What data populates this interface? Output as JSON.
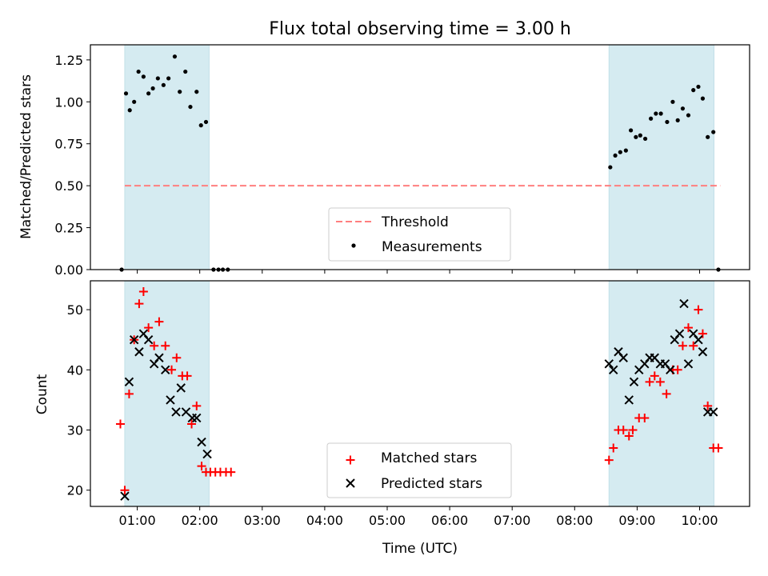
{
  "chart_data": [
    {
      "type": "scatter",
      "title": "Flux total observing time = 3.00 h",
      "xlabel": "",
      "ylabel": "Matched/Predicted stars",
      "xlim": [
        0.25,
        10.8
      ],
      "ylim": [
        0,
        1.34
      ],
      "yticks": [
        0,
        0.25,
        0.5,
        0.75,
        1.0,
        1.25
      ],
      "ytick_labels": [
        "0.00",
        "0.25",
        "0.50",
        "0.75",
        "1.00",
        "1.25"
      ],
      "xticks": [
        1,
        2,
        3,
        4,
        5,
        6,
        7,
        8,
        9,
        10
      ],
      "shaded_intervals": [
        [
          0.8,
          2.15
        ],
        [
          8.55,
          10.23
        ]
      ],
      "shade_color": "#d5ebf1",
      "threshold": {
        "name": "Threshold",
        "value": 0.5,
        "x_range": [
          0.8,
          10.33
        ],
        "color": "#ff7f7f"
      },
      "legend": {
        "position": "lower center",
        "entries": [
          "Threshold",
          "Measurements"
        ]
      },
      "series": [
        {
          "name": "Measurements",
          "color": "#000000",
          "x": [
            0.75,
            0.82,
            0.88,
            0.95,
            1.02,
            1.1,
            1.18,
            1.25,
            1.33,
            1.42,
            1.5,
            1.6,
            1.68,
            1.77,
            1.85,
            1.95,
            2.02,
            2.1,
            2.22,
            2.3,
            2.37,
            2.45,
            8.57,
            8.65,
            8.73,
            8.82,
            8.9,
            8.98,
            9.05,
            9.13,
            9.22,
            9.3,
            9.38,
            9.48,
            9.57,
            9.65,
            9.73,
            9.82,
            9.9,
            9.98,
            10.05,
            10.13,
            10.22,
            10.3
          ],
          "y": [
            0.0,
            1.05,
            0.95,
            1.0,
            1.18,
            1.15,
            1.05,
            1.08,
            1.14,
            1.1,
            1.14,
            1.27,
            1.06,
            1.18,
            0.97,
            1.06,
            0.86,
            0.88,
            0.0,
            0.0,
            0.0,
            0.0,
            0.61,
            0.68,
            0.7,
            0.71,
            0.83,
            0.79,
            0.8,
            0.78,
            0.9,
            0.93,
            0.93,
            0.88,
            1.0,
            0.89,
            0.96,
            0.92,
            1.07,
            1.09,
            1.02,
            0.79,
            0.82,
            0.0
          ]
        }
      ]
    },
    {
      "type": "scatter",
      "title": "",
      "xlabel": "Time (UTC)",
      "ylabel": "Count",
      "xlim": [
        0.25,
        10.8
      ],
      "ylim": [
        17.3,
        54.8
      ],
      "yticks": [
        20,
        30,
        40,
        50
      ],
      "xticks": [
        1,
        2,
        3,
        4,
        5,
        6,
        7,
        8,
        9,
        10
      ],
      "xtick_labels": [
        "01:00",
        "02:00",
        "03:00",
        "04:00",
        "05:00",
        "06:00",
        "07:00",
        "08:00",
        "09:00",
        "10:00"
      ],
      "shaded_intervals": [
        [
          0.8,
          2.15
        ],
        [
          8.55,
          10.23
        ]
      ],
      "shade_color": "#d5ebf1",
      "legend": {
        "position": "lower center",
        "entries": [
          "Matched stars",
          "Predicted stars"
        ]
      },
      "series": [
        {
          "name": "Matched stars",
          "marker": "+",
          "color": "#ff0000",
          "x": [
            0.73,
            0.8,
            0.87,
            0.95,
            1.03,
            1.1,
            1.18,
            1.27,
            1.35,
            1.45,
            1.55,
            1.63,
            1.72,
            1.8,
            1.87,
            1.95,
            2.03,
            2.1,
            2.17,
            2.25,
            2.33,
            2.42,
            2.5,
            8.55,
            8.62,
            8.7,
            8.78,
            8.87,
            8.93,
            9.03,
            9.12,
            9.2,
            9.28,
            9.37,
            9.47,
            9.57,
            9.65,
            9.73,
            9.82,
            9.9,
            9.98,
            10.05,
            10.13,
            10.22,
            10.3
          ],
          "y": [
            31,
            20,
            36,
            45,
            51,
            53,
            47,
            44,
            48,
            44,
            40,
            42,
            39,
            39,
            31,
            34,
            24,
            23,
            23,
            23,
            23,
            23,
            23,
            25,
            27,
            30,
            30,
            29,
            30,
            32,
            32,
            38,
            39,
            38,
            36,
            40,
            40,
            44,
            47,
            44,
            50,
            46,
            34,
            27,
            27
          ]
        },
        {
          "name": "Predicted stars",
          "marker": "x",
          "color": "#000000",
          "x": [
            0.8,
            0.87,
            0.95,
            1.03,
            1.1,
            1.18,
            1.27,
            1.35,
            1.45,
            1.53,
            1.62,
            1.7,
            1.78,
            1.88,
            1.95,
            2.03,
            2.12,
            8.55,
            8.62,
            8.7,
            8.78,
            8.87,
            8.95,
            9.03,
            9.12,
            9.2,
            9.28,
            9.37,
            9.45,
            9.53,
            9.6,
            9.68,
            9.75,
            9.82,
            9.9,
            9.98,
            10.05,
            10.13,
            10.22
          ],
          "y": [
            19,
            38,
            45,
            43,
            46,
            45,
            41,
            42,
            40,
            35,
            33,
            37,
            33,
            32,
            32,
            28,
            26,
            41,
            40,
            43,
            42,
            35,
            38,
            40,
            41,
            42,
            42,
            41,
            41,
            40,
            45,
            46,
            51,
            41,
            46,
            45,
            43,
            33,
            33
          ]
        }
      ]
    }
  ]
}
